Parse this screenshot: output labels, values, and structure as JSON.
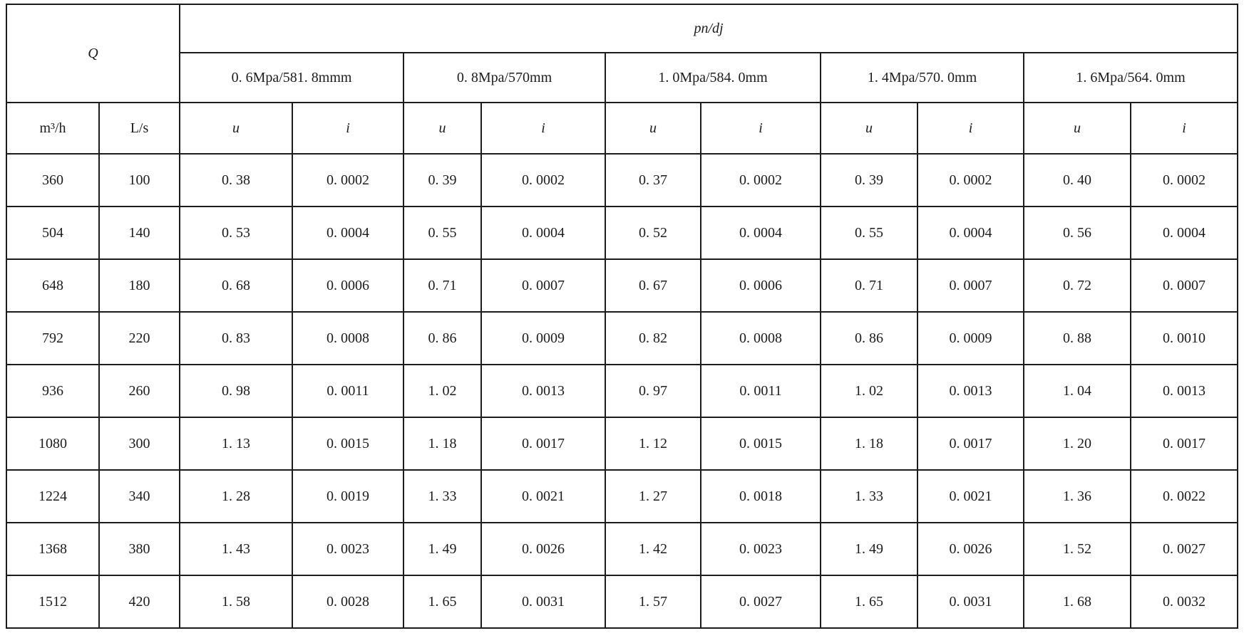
{
  "page": {
    "background_color": "#ffffff",
    "text_color": "#1c1c1c",
    "border_color": "#1c1c1c"
  },
  "table": {
    "q_label": "Q",
    "pn_dj_label": "pn/dj",
    "flow_unit_headers": [
      "m³/h",
      "L/s"
    ],
    "pressure_headers": [
      "0. 6Mpa/581. 8mmm",
      "0. 8Mpa/570mm",
      "1. 0Mpa/584. 0mm",
      "1. 4Mpa/570. 0mm",
      "1. 6Mpa/564. 0mm"
    ],
    "u_label": "u",
    "i_label": "i",
    "rows": [
      {
        "flow_m3_per_h": "360",
        "flow_l_per_s": "100",
        "values": [
          "0. 38",
          "0. 0002",
          "0. 39",
          "0. 0002",
          "0. 37",
          "0. 0002",
          "0. 39",
          "0. 0002",
          "0. 40",
          "0. 0002"
        ]
      },
      {
        "flow_m3_per_h": "504",
        "flow_l_per_s": "140",
        "values": [
          "0. 53",
          "0. 0004",
          "0. 55",
          "0. 0004",
          "0. 52",
          "0. 0004",
          "0. 55",
          "0. 0004",
          "0. 56",
          "0. 0004"
        ]
      },
      {
        "flow_m3_per_h": "648",
        "flow_l_per_s": "180",
        "values": [
          "0. 68",
          "0. 0006",
          "0. 71",
          "0. 0007",
          "0. 67",
          "0. 0006",
          "0. 71",
          "0. 0007",
          "0. 72",
          "0. 0007"
        ]
      },
      {
        "flow_m3_per_h": "792",
        "flow_l_per_s": "220",
        "values": [
          "0. 83",
          "0. 0008",
          "0. 86",
          "0. 0009",
          "0. 82",
          "0. 0008",
          "0. 86",
          "0. 0009",
          "0. 88",
          "0. 0010"
        ]
      },
      {
        "flow_m3_per_h": "936",
        "flow_l_per_s": "260",
        "values": [
          "0. 98",
          "0. 0011",
          "1. 02",
          "0. 0013",
          "0. 97",
          "0. 0011",
          "1. 02",
          "0. 0013",
          "1. 04",
          "0. 0013"
        ]
      },
      {
        "flow_m3_per_h": "1080",
        "flow_l_per_s": "300",
        "values": [
          "1. 13",
          "0. 0015",
          "1. 18",
          "0. 0017",
          "1. 12",
          "0. 0015",
          "1. 18",
          "0. 0017",
          "1. 20",
          "0. 0017"
        ]
      },
      {
        "flow_m3_per_h": "1224",
        "flow_l_per_s": "340",
        "values": [
          "1. 28",
          "0. 0019",
          "1. 33",
          "0. 0021",
          "1. 27",
          "0. 0018",
          "1. 33",
          "0. 0021",
          "1. 36",
          "0. 0022"
        ]
      },
      {
        "flow_m3_per_h": "1368",
        "flow_l_per_s": "380",
        "values": [
          "1. 43",
          "0. 0023",
          "1. 49",
          "0. 0026",
          "1. 42",
          "0. 0023",
          "1. 49",
          "0. 0026",
          "1. 52",
          "0. 0027"
        ]
      },
      {
        "flow_m3_per_h": "1512",
        "flow_l_per_s": "420",
        "values": [
          "1. 58",
          "0. 0028",
          "1. 65",
          "0. 0031",
          "1. 57",
          "0. 0027",
          "1. 65",
          "0. 0031",
          "1. 68",
          "0. 0032"
        ]
      }
    ]
  }
}
